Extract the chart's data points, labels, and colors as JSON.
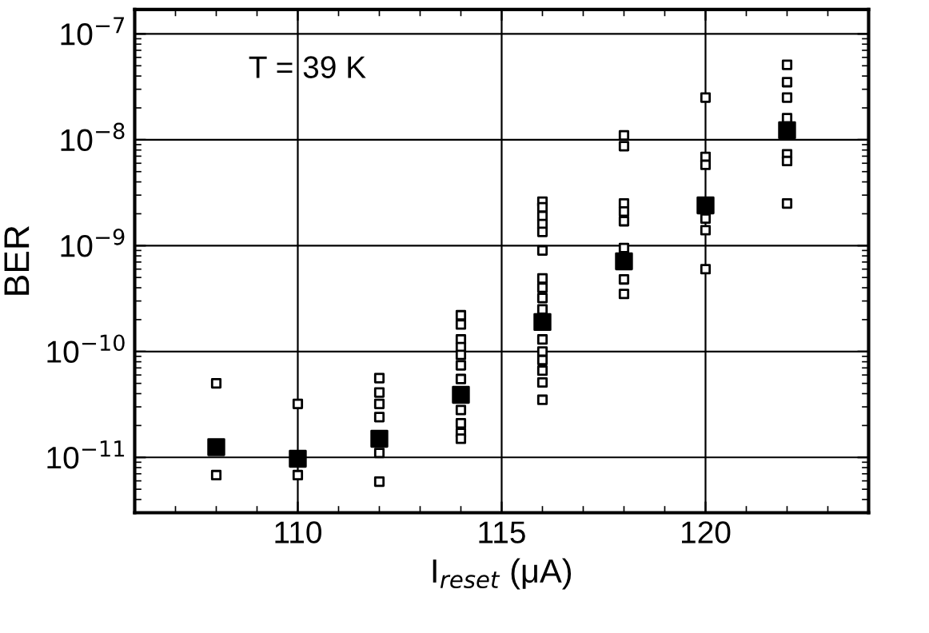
{
  "chart_data": {
    "type": "scatter",
    "xlabel": "I$_{reset}$ (μA)",
    "ylabel": "BER",
    "annotations": [
      "T = 39 K"
    ],
    "log": "y",
    "grid": true,
    "marker": "square",
    "xlim": [
      106,
      124
    ],
    "xticks": [
      110,
      115,
      120
    ],
    "ylim": [
      3e-12,
      1.7e-07
    ],
    "yticks": [
      {
        "value": 1e-11,
        "label": "10$^{−11}$"
      },
      {
        "value": 1e-10,
        "label": "10$^{−10}$"
      },
      {
        "value": 1e-09,
        "label": "10$^{−9}$"
      },
      {
        "value": 1e-08,
        "label": "10$^{−8}$"
      },
      {
        "value": 1e-07,
        "label": "10$^{−7}$"
      }
    ],
    "series": [
      {
        "color": "#ffffff",
        "x": [
          108,
          108,
          110,
          110,
          112,
          112,
          112,
          112,
          112,
          112,
          114,
          114,
          114,
          114,
          114,
          114,
          114,
          114,
          114,
          114,
          114,
          116,
          116,
          116,
          116,
          116,
          116,
          116,
          116,
          116,
          116,
          116,
          116,
          116,
          116,
          116,
          116,
          118,
          118,
          118,
          118,
          118,
          118,
          118,
          118,
          120,
          120,
          120,
          120,
          120,
          120,
          122,
          122,
          122,
          122,
          122,
          122,
          122
        ],
        "values": [
          5e-11,
          6.8e-12,
          3.2e-11,
          6.8e-12,
          5.6e-11,
          4.1e-11,
          3.2e-11,
          2.4e-11,
          1.1e-11,
          5.9e-12,
          2.2e-10,
          1.8e-10,
          1.3e-10,
          1.1e-10,
          9.3e-11,
          7.4e-11,
          5.5e-11,
          2.8e-11,
          2.1e-11,
          1.7e-11,
          1.5e-11,
          2.6e-09,
          2.3e-09,
          1.9e-09,
          1.6e-09,
          1.35e-09,
          9e-10,
          4.9e-10,
          4e-10,
          3.2e-10,
          2.5e-10,
          1.3e-10,
          1e-10,
          8.3e-11,
          6.6e-11,
          5.1e-11,
          3.5e-11,
          1.1e-08,
          8.7e-09,
          2.5e-09,
          2.1e-09,
          1.7e-09,
          9.5e-10,
          4.8e-10,
          3.5e-10,
          2.5e-08,
          6.9e-09,
          5.8e-09,
          1.8e-09,
          1.4e-09,
          6e-10,
          5.1e-08,
          3.5e-08,
          2.5e-08,
          1.6e-08,
          7.3e-09,
          6.3e-09,
          2.5e-09
        ]
      },
      {
        "color": "#000000",
        "x": [
          108,
          110,
          112,
          114,
          116,
          118,
          120,
          122
        ],
        "values": [
          1.25e-11,
          9.7e-12,
          1.5e-11,
          3.9e-11,
          1.9e-10,
          7.1e-10,
          2.4e-09,
          1.23e-08
        ]
      }
    ]
  }
}
